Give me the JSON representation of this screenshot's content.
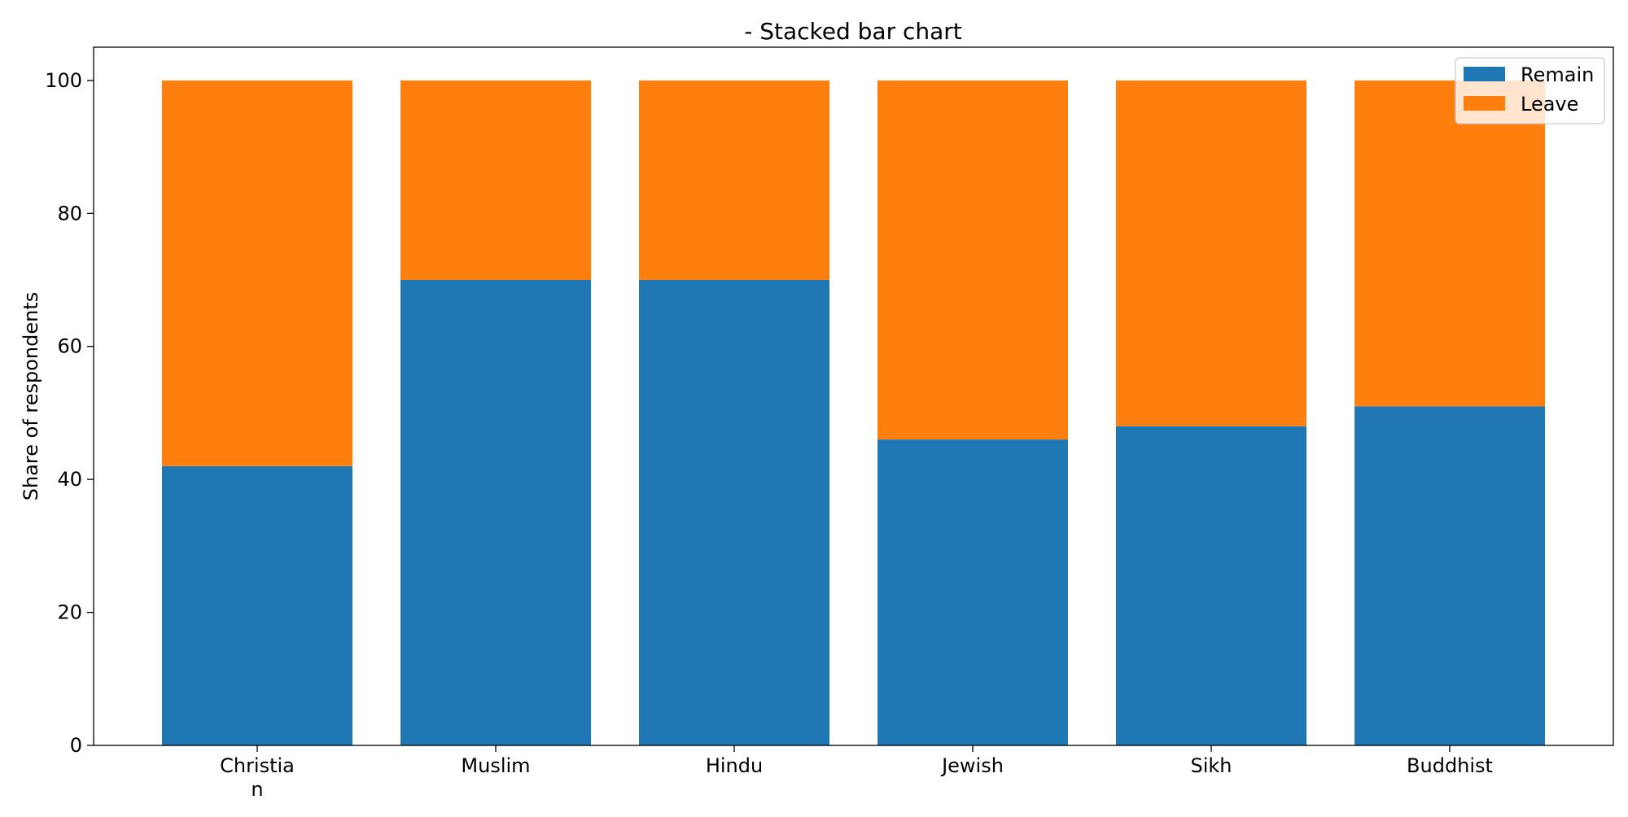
{
  "chart_data": {
    "type": "bar",
    "stacked": true,
    "title": "- Stacked bar chart",
    "xlabel": "",
    "ylabel": "Share of respondents",
    "categories": [
      "Christia\nn",
      "Muslim",
      "Hindu",
      "Jewish",
      "Sikh",
      "Buddhist"
    ],
    "series": [
      {
        "name": "Remain",
        "values": [
          42,
          70,
          70,
          46,
          48,
          51
        ],
        "color": "#1f77b4"
      },
      {
        "name": "Leave",
        "values": [
          58,
          30,
          30,
          54,
          52,
          49
        ],
        "color": "#ff7f0e"
      }
    ],
    "ylim": [
      0,
      105
    ],
    "yticks": [
      0,
      20,
      40,
      60,
      80,
      100
    ],
    "grid": false,
    "legend": "top-right"
  }
}
